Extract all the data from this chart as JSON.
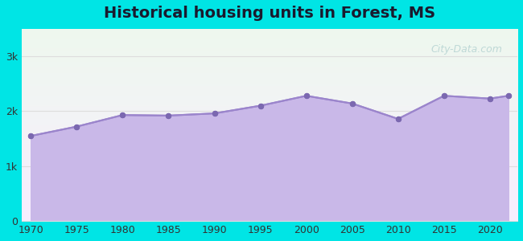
{
  "title": "Historical housing units in Forest, MS",
  "years": [
    1970,
    1975,
    1980,
    1985,
    1990,
    1995,
    2000,
    2005,
    2010,
    2015,
    2020,
    2022
  ],
  "values": [
    1550,
    1720,
    1930,
    1920,
    1960,
    2100,
    2280,
    2140,
    1860,
    2280,
    2230,
    2280
  ],
  "fill_color": "#c9b8e8",
  "line_color": "#9b85cc",
  "dot_color": "#7b68b0",
  "bg_outer": "#00e5e5",
  "bg_chart_top": "#f0fff0",
  "bg_chart_bottom": "#f5f0ff",
  "title_color": "#1a1a2e",
  "axis_color": "#333333",
  "tick_label_color": "#333333",
  "grid_color": "#dddddd",
  "ylim": [
    0,
    3500
  ],
  "yticks": [
    0,
    1000,
    2000,
    3000
  ],
  "ytick_labels": [
    "0",
    "1k",
    "2k",
    "3k"
  ],
  "watermark": "City-Data.com"
}
